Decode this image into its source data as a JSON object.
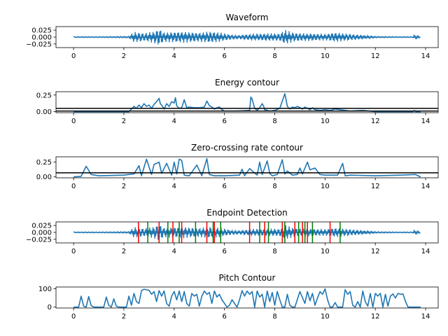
{
  "figure": {
    "background": "#ffffff",
    "line_color": "#1f77b4",
    "threshold_color": "#000000",
    "start_marker_color": "#ff0000",
    "end_marker_color": "#008000"
  },
  "chart_data": [
    {
      "type": "line",
      "title": "Waveform",
      "xlim": [
        -0.7,
        14.5
      ],
      "ylim": [
        -0.038,
        0.038
      ],
      "xticks": [
        0,
        2,
        4,
        6,
        8,
        10,
        12,
        14
      ],
      "xtick_labels": [
        "0",
        "2",
        "4",
        "6",
        "8",
        "10",
        "12",
        "14"
      ],
      "yticks": [
        0.025,
        0.0,
        -0.025
      ],
      "ytick_labels": [
        "0.025",
        "0.000",
        "−0.025"
      ],
      "series": [
        {
          "kind": "envelope",
          "x": [
            0.0,
            1.0,
            2.2,
            2.4,
            2.8,
            3.2,
            3.4,
            3.6,
            4.0,
            4.4,
            5.0,
            5.4,
            5.8,
            6.4,
            7.0,
            7.6,
            8.2,
            8.4,
            8.8,
            9.4,
            10.0,
            10.4,
            11.0,
            12.0,
            13.0,
            13.5,
            13.55,
            13.8
          ],
          "amplitude": [
            0.002,
            0.002,
            0.003,
            0.02,
            0.015,
            0.022,
            0.033,
            0.018,
            0.02,
            0.021,
            0.017,
            0.022,
            0.018,
            0.006,
            0.012,
            0.014,
            0.014,
            0.028,
            0.016,
            0.014,
            0.012,
            0.018,
            0.012,
            0.003,
            0.002,
            0.002,
            0.01,
            0.002
          ]
        }
      ]
    },
    {
      "type": "line",
      "title": "Energy contour",
      "xlim": [
        -0.7,
        14.5
      ],
      "ylim": [
        -0.015,
        0.3
      ],
      "xticks": [
        0,
        2,
        4,
        6,
        8,
        10,
        12,
        14
      ],
      "xtick_labels": [
        "0",
        "2",
        "4",
        "6",
        "8",
        "10",
        "12",
        "14"
      ],
      "yticks": [
        0.25,
        0.0
      ],
      "ytick_labels": [
        "0.25",
        "0.00"
      ],
      "hlines": [
        0.05,
        0.01
      ],
      "series": [
        {
          "x": [
            0.0,
            2.2,
            2.4,
            2.5,
            2.6,
            2.7,
            2.8,
            2.9,
            3.0,
            3.1,
            3.2,
            3.3,
            3.4,
            3.45,
            3.5,
            3.6,
            3.7,
            3.8,
            3.9,
            4.0,
            4.05,
            4.1,
            4.2,
            4.3,
            4.4,
            4.5,
            4.6,
            4.8,
            5.0,
            5.2,
            5.3,
            5.4,
            5.5,
            5.6,
            5.7,
            5.8,
            5.9,
            6.0,
            6.5,
            7.0,
            7.05,
            7.1,
            7.2,
            7.3,
            7.4,
            7.5,
            7.55,
            7.6,
            7.7,
            7.8,
            8.0,
            8.2,
            8.4,
            8.45,
            8.5,
            8.6,
            8.7,
            8.8,
            8.9,
            9.0,
            9.1,
            9.2,
            9.3,
            9.4,
            9.5,
            9.6,
            9.8,
            10.0,
            10.2,
            10.4,
            10.8,
            11.0,
            11.5,
            12.0,
            13.0,
            13.5,
            13.55,
            13.6,
            13.8
          ],
          "y": [
            0.0,
            0.0,
            0.08,
            0.05,
            0.1,
            0.06,
            0.12,
            0.08,
            0.1,
            0.05,
            0.11,
            0.15,
            0.2,
            0.12,
            0.1,
            0.04,
            0.12,
            0.08,
            0.15,
            0.13,
            0.21,
            0.09,
            0.05,
            0.06,
            0.18,
            0.06,
            0.07,
            0.06,
            0.06,
            0.07,
            0.16,
            0.09,
            0.07,
            0.04,
            0.06,
            0.07,
            0.03,
            0.01,
            0.01,
            0.02,
            0.22,
            0.19,
            0.05,
            0.02,
            0.06,
            0.12,
            0.09,
            0.03,
            0.02,
            0.01,
            0.02,
            0.05,
            0.27,
            0.18,
            0.08,
            0.04,
            0.07,
            0.06,
            0.08,
            0.06,
            0.04,
            0.07,
            0.05,
            0.03,
            0.06,
            0.03,
            0.02,
            0.03,
            0.02,
            0.04,
            0.02,
            0.01,
            0.02,
            0.0,
            0.0,
            0.0,
            0.02,
            0.0,
            0.0
          ]
        }
      ]
    },
    {
      "type": "line",
      "title": "Zero-crossing rate contour",
      "xlim": [
        -0.7,
        14.5
      ],
      "ylim": [
        -0.015,
        0.34
      ],
      "xticks": [
        0,
        2,
        4,
        6,
        8,
        10,
        12,
        14
      ],
      "xtick_labels": [
        "0",
        "2",
        "4",
        "6",
        "8",
        "10",
        "12",
        "14"
      ],
      "yticks": [
        0.25,
        0.0
      ],
      "ytick_labels": [
        "0.25",
        "0.00"
      ],
      "hlines": [
        0.07
      ],
      "series": [
        {
          "x": [
            0.0,
            0.3,
            0.5,
            0.7,
            1.0,
            2.0,
            2.4,
            2.6,
            2.7,
            2.9,
            3.1,
            3.2,
            3.4,
            3.5,
            3.7,
            3.9,
            4.0,
            4.1,
            4.2,
            4.3,
            4.4,
            4.6,
            4.9,
            5.1,
            5.3,
            5.4,
            5.6,
            6.0,
            6.6,
            6.7,
            6.8,
            7.0,
            7.3,
            7.4,
            7.5,
            7.7,
            7.8,
            7.9,
            8.1,
            8.3,
            8.4,
            8.5,
            8.7,
            8.9,
            9.0,
            9.1,
            9.3,
            9.4,
            9.6,
            9.8,
            10.0,
            10.5,
            10.7,
            10.8,
            11.0,
            12.0,
            13.0,
            13.6,
            13.8
          ],
          "y": [
            0.0,
            0.01,
            0.18,
            0.04,
            0.02,
            0.03,
            0.05,
            0.19,
            0.02,
            0.3,
            0.04,
            0.21,
            0.25,
            0.06,
            0.23,
            0.03,
            0.25,
            0.05,
            0.3,
            0.28,
            0.03,
            0.02,
            0.2,
            0.02,
            0.31,
            0.04,
            0.02,
            0.02,
            0.03,
            0.13,
            0.02,
            0.14,
            0.03,
            0.25,
            0.04,
            0.27,
            0.06,
            0.02,
            0.04,
            0.29,
            0.05,
            0.1,
            0.03,
            0.04,
            0.15,
            0.05,
            0.25,
            0.12,
            0.15,
            0.04,
            0.03,
            0.03,
            0.23,
            0.02,
            0.03,
            0.02,
            0.03,
            0.04,
            0.0
          ]
        }
      ]
    },
    {
      "type": "line",
      "title": "Endpoint Detection",
      "xlim": [
        -0.7,
        14.5
      ],
      "ylim": [
        -0.038,
        0.038
      ],
      "xticks": [
        0,
        2,
        4,
        6,
        8,
        10,
        12,
        14
      ],
      "xtick_labels": [
        "0",
        "2",
        "4",
        "6",
        "8",
        "10",
        "12",
        "14"
      ],
      "yticks": [
        0.025,
        0.0,
        -0.025
      ],
      "ytick_labels": [
        "0.025",
        "0.000",
        "−0.025"
      ],
      "start_points": [
        2.58,
        3.4,
        3.95,
        4.3,
        5.3,
        5.6,
        7.0,
        7.6,
        8.3,
        8.8,
        9.1,
        9.3,
        10.2
      ],
      "end_points": [
        2.95,
        3.75,
        4.2,
        4.85,
        5.55,
        5.85,
        7.4,
        7.75,
        8.4,
        8.95,
        9.2,
        9.5,
        10.6
      ]
    },
    {
      "type": "line",
      "title": "Pitch Contour",
      "xlim": [
        -0.7,
        14.5
      ],
      "ylim": [
        -5,
        110
      ],
      "xticks": [
        0,
        2,
        4,
        6,
        8,
        10,
        12,
        14
      ],
      "xtick_labels": [
        "0",
        "2",
        "4",
        "6",
        "8",
        "10",
        "12",
        "14"
      ],
      "yticks": [
        100,
        0
      ],
      "ytick_labels": [
        "100",
        "0"
      ],
      "series": [
        {
          "x": [
            0.0,
            0.2,
            0.3,
            0.4,
            0.5,
            0.6,
            0.7,
            0.8,
            1.2,
            1.3,
            1.4,
            1.5,
            1.6,
            1.7,
            1.8,
            2.1,
            2.2,
            2.3,
            2.4,
            2.5,
            2.6,
            2.7,
            2.8,
            3.0,
            3.1,
            3.2,
            3.3,
            3.4,
            3.5,
            3.6,
            3.7,
            3.8,
            3.9,
            4.0,
            4.1,
            4.2,
            4.3,
            4.4,
            4.5,
            4.6,
            4.7,
            4.8,
            4.9,
            5.0,
            5.1,
            5.2,
            5.3,
            5.4,
            5.5,
            5.6,
            5.7,
            5.8,
            5.9,
            6.0,
            6.1,
            6.2,
            6.3,
            6.5,
            6.6,
            6.7,
            6.8,
            6.9,
            7.0,
            7.1,
            7.2,
            7.3,
            7.4,
            7.5,
            7.6,
            7.7,
            7.8,
            7.9,
            8.0,
            8.1,
            8.2,
            8.3,
            8.4,
            8.5,
            8.6,
            8.7,
            8.8,
            9.0,
            9.2,
            9.3,
            9.4,
            9.5,
            9.6,
            9.7,
            9.8,
            9.9,
            10.0,
            10.1,
            10.2,
            10.3,
            10.4,
            10.5,
            10.6,
            10.7,
            10.8,
            10.9,
            11.0,
            11.1,
            11.2,
            11.3,
            11.4,
            11.5,
            11.6,
            11.7,
            11.8,
            11.9,
            12.0,
            12.1,
            12.2,
            12.3,
            12.4,
            12.5,
            12.6,
            12.7,
            12.8,
            12.9,
            13.0,
            13.1,
            13.2,
            13.3,
            13.4,
            13.5,
            13.8
          ],
          "y": [
            0,
            0,
            60,
            5,
            0,
            58,
            8,
            0,
            0,
            55,
            10,
            0,
            45,
            5,
            0,
            0,
            60,
            10,
            75,
            30,
            20,
            90,
            98,
            92,
            70,
            85,
            30,
            90,
            60,
            88,
            20,
            5,
            60,
            85,
            40,
            88,
            30,
            85,
            20,
            5,
            75,
            60,
            70,
            5,
            60,
            88,
            70,
            80,
            20,
            88,
            55,
            70,
            40,
            20,
            0,
            10,
            40,
            0,
            40,
            90,
            60,
            88,
            70,
            85,
            0,
            88,
            55,
            70,
            0,
            88,
            30,
            80,
            10,
            85,
            40,
            0,
            0,
            70,
            10,
            0,
            0,
            85,
            20,
            85,
            35,
            75,
            10,
            50,
            85,
            70,
            100,
            40,
            0,
            0,
            25,
            0,
            0,
            0,
            95,
            70,
            85,
            10,
            0,
            30,
            0,
            88,
            30,
            5,
            75,
            0,
            75,
            60,
            75,
            0,
            70,
            5,
            60,
            72,
            50,
            75,
            70,
            72,
            30,
            0,
            0,
            0,
            0
          ]
        }
      ]
    }
  ]
}
